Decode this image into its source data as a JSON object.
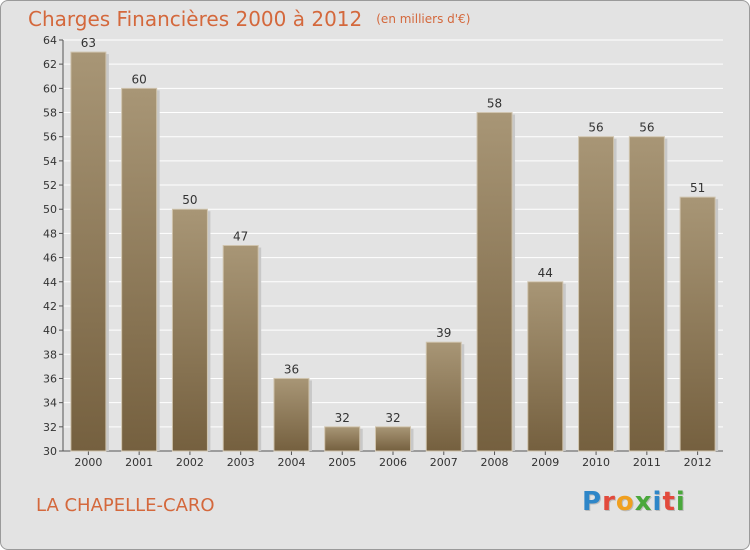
{
  "title": "Charges Financières 2000 à 2012",
  "subtitle": "(en milliers d'€)",
  "place": "LA CHAPELLE-CARO",
  "logo": {
    "letters": [
      "P",
      "r",
      "o",
      "x",
      "i",
      "t",
      "i"
    ],
    "colors": [
      "#2e86c8",
      "#e24a3c",
      "#f0a020",
      "#4aa83c",
      "#2e86c8",
      "#e24a3c",
      "#4aa83c"
    ]
  },
  "chart_data": {
    "type": "bar",
    "categories": [
      "2000",
      "2001",
      "2002",
      "2003",
      "2004",
      "2005",
      "2006",
      "2007",
      "2008",
      "2009",
      "2010",
      "2011",
      "2012"
    ],
    "values": [
      63,
      60,
      50,
      47,
      36,
      32,
      32,
      39,
      58,
      44,
      56,
      56,
      51
    ],
    "ylim": [
      30,
      64
    ],
    "yticks": [
      30,
      32,
      34,
      36,
      38,
      40,
      42,
      44,
      46,
      48,
      50,
      52,
      54,
      56,
      58,
      60,
      62,
      64
    ],
    "grid": true,
    "bar_color_top": "#a89676",
    "bar_color_bottom": "#75603f"
  }
}
